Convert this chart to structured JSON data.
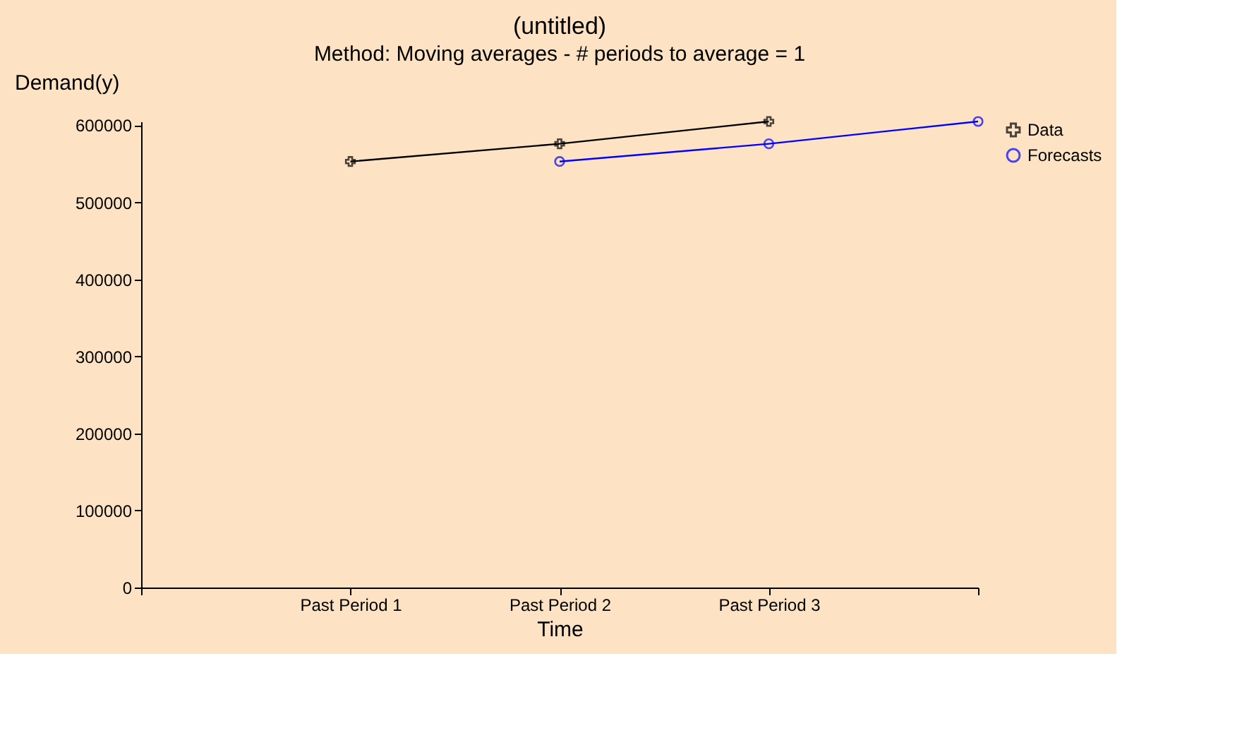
{
  "chart_data": {
    "type": "line",
    "title": "(untitled)",
    "subtitle": "Method: Moving averages - # periods to average = 1",
    "xlabel": "Time",
    "ylabel": "Demand(y)",
    "categories": [
      null,
      "Past Period 1",
      "Past Period 2",
      "Past Period 3",
      null
    ],
    "series": [
      {
        "name": "Data",
        "color": "#000000",
        "marker": "cross",
        "values": [
          null,
          553000,
          576000,
          605000,
          null
        ]
      },
      {
        "name": "Forecasts",
        "color": "#0000ff",
        "marker": "circle",
        "values": [
          null,
          null,
          553000,
          576000,
          605000
        ]
      }
    ],
    "ylim": [
      0,
      605000
    ],
    "yticks": [
      0,
      100000,
      200000,
      300000,
      400000,
      500000,
      600000
    ],
    "grid": false,
    "legend": "right",
    "line_style": "solid"
  }
}
